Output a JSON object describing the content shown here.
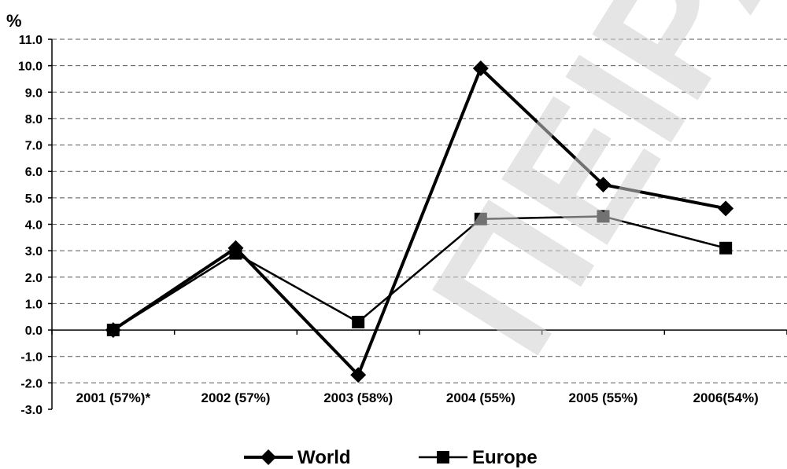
{
  "watermark": "ΠΕΙΡΑΙΑ",
  "chart_data": {
    "type": "line",
    "unit_label": "%",
    "categories": [
      "2001 (57%)*",
      "2002 (57%)",
      "2003 (58%)",
      "2004 (55%)",
      "2005 (55%)",
      "2006(54%)"
    ],
    "ylim": [
      -3.0,
      11.0
    ],
    "yticks": [
      "11.0",
      "10.0",
      "9.0",
      "8.0",
      "7.0",
      "6.0",
      "5.0",
      "4.0",
      "3.0",
      "2.0",
      "1.0",
      "0.0",
      "-1.0",
      "-2.0",
      "-3.0"
    ],
    "grid": true,
    "legend_position": "bottom",
    "series": [
      {
        "name": "World",
        "marker": "diamond",
        "color": "#000000",
        "values": [
          0.0,
          3.1,
          -1.7,
          9.9,
          5.5,
          4.6
        ]
      },
      {
        "name": "Europe",
        "marker": "square",
        "color": "#000000",
        "values": [
          0.0,
          2.9,
          0.3,
          4.2,
          4.3,
          3.1
        ]
      }
    ]
  }
}
